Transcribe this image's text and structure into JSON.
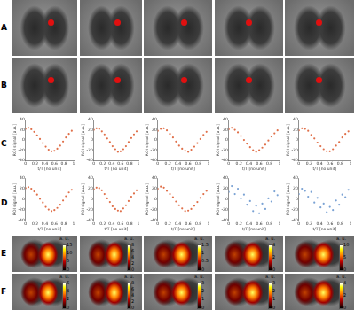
{
  "panel_labels": [
    "A",
    "B",
    "C",
    "D",
    "E",
    "F"
  ],
  "chart_data": [
    {
      "type": "scatter",
      "x_label": "t/T [no unit]",
      "y_label": "ROI signal [a.u.]",
      "xlim": [
        0,
        1
      ],
      "xticks": [
        0,
        0.2,
        0.4,
        0.6,
        0.8,
        1
      ],
      "ylim": [
        -40,
        40
      ],
      "yticks": [
        -40,
        -20,
        0,
        20,
        40
      ],
      "grid": false,
      "color": "#e0704a",
      "marker": "circle",
      "x": [
        0,
        0.06,
        0.12,
        0.18,
        0.24,
        0.3,
        0.36,
        0.42,
        0.48,
        0.54,
        0.6,
        0.66,
        0.72,
        0.78,
        0.84,
        0.9,
        0.96
      ],
      "values": [
        22,
        24,
        21,
        16,
        9,
        2,
        -6,
        -13,
        -19,
        -22,
        -21,
        -17,
        -11,
        -3,
        5,
        12,
        18
      ]
    },
    {
      "type": "scatter",
      "x_label": "t/T [no unit]",
      "y_label": "ROI signal [a.u.]",
      "xlim": [
        0,
        1
      ],
      "xticks": [
        0,
        0.2,
        0.4,
        0.6,
        0.8,
        1
      ],
      "ylim": [
        -40,
        40
      ],
      "yticks": [
        -40,
        -20,
        0,
        20,
        40
      ],
      "grid": false,
      "color": "#e0704a",
      "marker": "circle",
      "x": [
        0,
        0.06,
        0.12,
        0.18,
        0.24,
        0.3,
        0.36,
        0.42,
        0.48,
        0.54,
        0.6,
        0.66,
        0.72,
        0.78,
        0.84,
        0.9,
        0.96
      ],
      "values": [
        20,
        23,
        22,
        17,
        11,
        3,
        -4,
        -12,
        -18,
        -23,
        -22,
        -18,
        -12,
        -4,
        4,
        11,
        17
      ]
    },
    {
      "type": "scatter",
      "x_label": "t/T [no unit]",
      "y_label": "ROI signal [a.u.]",
      "xlim": [
        0,
        1
      ],
      "xticks": [
        0,
        0.2,
        0.4,
        0.6,
        0.8,
        1
      ],
      "ylim": [
        -40,
        40
      ],
      "yticks": [
        -40,
        -20,
        0,
        20,
        40
      ],
      "grid": false,
      "color": "#e0704a",
      "marker": "circle",
      "x": [
        0,
        0.06,
        0.12,
        0.18,
        0.24,
        0.3,
        0.36,
        0.42,
        0.48,
        0.54,
        0.6,
        0.66,
        0.72,
        0.78,
        0.84,
        0.9,
        0.96
      ],
      "values": [
        18,
        22,
        23,
        19,
        12,
        5,
        -3,
        -11,
        -17,
        -21,
        -23,
        -19,
        -13,
        -6,
        2,
        10,
        16
      ]
    },
    {
      "type": "scatter",
      "x_label": "t/T [no unit]",
      "y_label": "ROI signal [a.u.]",
      "xlim": [
        0,
        1
      ],
      "xticks": [
        0,
        0.2,
        0.4,
        0.6,
        0.8,
        1
      ],
      "ylim": [
        -40,
        40
      ],
      "yticks": [
        -40,
        -20,
        0,
        20,
        40
      ],
      "grid": false,
      "color": "#e0704a",
      "marker": "circle",
      "x": [
        0,
        0.06,
        0.12,
        0.18,
        0.24,
        0.3,
        0.36,
        0.42,
        0.48,
        0.54,
        0.6,
        0.66,
        0.72,
        0.78,
        0.84,
        0.9,
        0.96
      ],
      "values": [
        21,
        24,
        20,
        15,
        8,
        0,
        -7,
        -14,
        -20,
        -23,
        -20,
        -15,
        -9,
        -1,
        7,
        13,
        19
      ]
    },
    {
      "type": "scatter",
      "x_label": "t/T [no unit]",
      "y_label": "ROI signal [a.u.]",
      "xlim": [
        0,
        1
      ],
      "xticks": [
        0,
        0.2,
        0.4,
        0.6,
        0.8,
        1
      ],
      "ylim": [
        -40,
        40
      ],
      "yticks": [
        -40,
        -20,
        0,
        20,
        40
      ],
      "grid": false,
      "color": "#e0704a",
      "marker": "circle",
      "x": [
        0,
        0.06,
        0.12,
        0.18,
        0.24,
        0.3,
        0.36,
        0.42,
        0.48,
        0.54,
        0.6,
        0.66,
        0.72,
        0.78,
        0.84,
        0.9,
        0.96
      ],
      "values": [
        19,
        23,
        22,
        18,
        10,
        3,
        -5,
        -12,
        -18,
        -22,
        -22,
        -18,
        -11,
        -4,
        5,
        12,
        17
      ]
    },
    {
      "type": "scatter",
      "x_label": "t/T [no unit]",
      "y_label": "ROI signal [a.u.]",
      "xlim": [
        0,
        1
      ],
      "xticks": [
        0,
        0.2,
        0.4,
        0.6,
        0.8,
        1
      ],
      "ylim": [
        -40,
        40
      ],
      "yticks": [
        -40,
        -20,
        0,
        20,
        40
      ],
      "grid": false,
      "color": "#e0704a",
      "marker": "circle",
      "x": [
        0,
        0.06,
        0.12,
        0.18,
        0.24,
        0.3,
        0.36,
        0.42,
        0.48,
        0.54,
        0.6,
        0.66,
        0.72,
        0.78,
        0.84,
        0.9,
        0.96
      ],
      "values": [
        21,
        23,
        20,
        15,
        9,
        1,
        -6,
        -14,
        -19,
        -22,
        -20,
        -16,
        -10,
        -2,
        6,
        13,
        18
      ]
    },
    {
      "type": "scatter",
      "x_label": "t/T [no unit]",
      "y_label": "ROI signal [a.u.]",
      "xlim": [
        0,
        1
      ],
      "xticks": [
        0,
        0.2,
        0.4,
        0.6,
        0.8,
        1
      ],
      "ylim": [
        -40,
        40
      ],
      "yticks": [
        -40,
        -20,
        0,
        20,
        40
      ],
      "grid": false,
      "color": "#e0704a",
      "marker": "circle",
      "x": [
        0,
        0.06,
        0.12,
        0.18,
        0.24,
        0.3,
        0.36,
        0.42,
        0.48,
        0.54,
        0.6,
        0.66,
        0.72,
        0.78,
        0.84,
        0.9,
        0.96
      ],
      "values": [
        19,
        22,
        21,
        17,
        10,
        2,
        -5,
        -13,
        -18,
        -21,
        -22,
        -17,
        -11,
        -3,
        5,
        11,
        17
      ]
    },
    {
      "type": "scatter",
      "x_label": "t/T [no unit]",
      "y_label": "ROI signal [a.u.]",
      "xlim": [
        0,
        1
      ],
      "xticks": [
        0,
        0.2,
        0.4,
        0.6,
        0.8,
        1
      ],
      "ylim": [
        -40,
        40
      ],
      "yticks": [
        -40,
        -20,
        0,
        20,
        40
      ],
      "grid": false,
      "color": "#e0704a",
      "marker": "circle",
      "x": [
        0,
        0.06,
        0.12,
        0.18,
        0.24,
        0.3,
        0.36,
        0.42,
        0.48,
        0.54,
        0.6,
        0.66,
        0.72,
        0.78,
        0.84,
        0.9,
        0.96
      ],
      "values": [
        20,
        24,
        22,
        16,
        10,
        4,
        -4,
        -11,
        -17,
        -22,
        -21,
        -18,
        -12,
        -5,
        3,
        10,
        16
      ]
    },
    {
      "type": "scatter",
      "x_label": "t/T [no unit]",
      "y_label": "ROI signal [a.u.]",
      "xlim": [
        0,
        1
      ],
      "xticks": [
        0,
        0.2,
        0.4,
        0.6,
        0.8,
        1
      ],
      "ylim": [
        -40,
        40
      ],
      "yticks": [
        -40,
        -20,
        0,
        20,
        40
      ],
      "grid": false,
      "color": "#7aa2d4",
      "marker": "circle",
      "x": [
        0,
        0.06,
        0.12,
        0.18,
        0.24,
        0.3,
        0.36,
        0.42,
        0.48,
        0.54,
        0.6,
        0.66,
        0.72,
        0.78,
        0.84,
        0.9,
        0.96
      ],
      "values": [
        14,
        25,
        10,
        20,
        2,
        9,
        -10,
        -3,
        -22,
        -12,
        -26,
        -8,
        -18,
        2,
        -4,
        15,
        8
      ]
    },
    {
      "type": "scatter",
      "x_label": "t/T [no unit]",
      "y_label": "ROI signal [a.u.]",
      "xlim": [
        0,
        1
      ],
      "xticks": [
        0,
        0.2,
        0.4,
        0.6,
        0.8,
        1
      ],
      "ylim": [
        -40,
        40
      ],
      "yticks": [
        -40,
        -20,
        0,
        20,
        40
      ],
      "grid": false,
      "color": "#7aa2d4",
      "marker": "circle",
      "x": [
        0,
        0.06,
        0.12,
        0.18,
        0.24,
        0.3,
        0.36,
        0.42,
        0.48,
        0.54,
        0.6,
        0.66,
        0.72,
        0.78,
        0.84,
        0.9,
        0.96
      ],
      "values": [
        10,
        20,
        16,
        5,
        14,
        -6,
        3,
        -15,
        -8,
        -24,
        -14,
        -20,
        -2,
        -10,
        9,
        4,
        18
      ]
    }
  ],
  "colorbars": [
    {
      "label": "a. u.",
      "range": [
        0,
        15
      ],
      "ticks": [
        0,
        5,
        10,
        15
      ]
    },
    {
      "label": "a. u.",
      "range": [
        0,
        8
      ],
      "ticks": [
        0,
        2,
        4,
        6,
        8
      ]
    },
    {
      "label": "a. u.",
      "range": [
        0,
        1.5
      ],
      "ticks": [
        0,
        0.5,
        1,
        1.5
      ]
    },
    {
      "label": "a. u.",
      "range": [
        0,
        4
      ],
      "ticks": [
        0,
        2,
        4
      ]
    },
    {
      "label": "a. u.",
      "range": [
        0,
        10
      ],
      "ticks": [
        0,
        5,
        10
      ]
    },
    {
      "label": "a. u.",
      "range": [
        0,
        6
      ],
      "ticks": [
        0,
        2,
        4,
        6
      ]
    },
    {
      "label": "a. u.",
      "range": [
        0,
        8
      ],
      "ticks": [
        0,
        2,
        4,
        6,
        8
      ]
    },
    {
      "label": "a. u.",
      "range": [
        0,
        3
      ],
      "ticks": [
        0,
        1,
        2,
        3
      ]
    },
    {
      "label": "a. u.",
      "range": [
        0,
        3
      ],
      "ticks": [
        0,
        1,
        2,
        3
      ]
    },
    {
      "label": "a. u.",
      "range": [
        0,
        4
      ],
      "ticks": [
        0,
        2,
        4
      ]
    }
  ]
}
